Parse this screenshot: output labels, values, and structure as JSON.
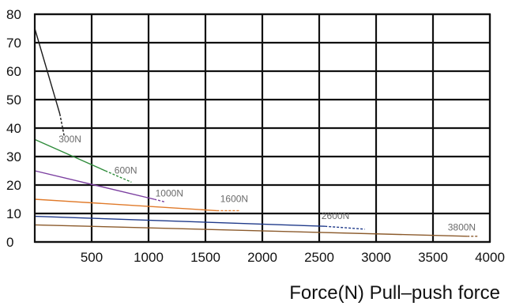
{
  "chart_data": {
    "type": "line",
    "title": "",
    "xlabel": "Force(N) Pull–push force",
    "ylabel": "",
    "xlim": [
      0,
      4000
    ],
    "ylim": [
      0,
      80
    ],
    "xticks": [
      500,
      1000,
      1500,
      2000,
      2500,
      3000,
      3500,
      4000
    ],
    "yticks": [
      0,
      10,
      20,
      30,
      40,
      50,
      60,
      70,
      80
    ],
    "grid": true,
    "legend": "none",
    "series": [
      {
        "name": "300N",
        "color": "#1a1a1a",
        "solid": [
          [
            0,
            75
          ],
          [
            220,
            45
          ]
        ],
        "dashed": [
          [
            220,
            45
          ],
          [
            260,
            37
          ]
        ],
        "label_at": [
          210,
          35
        ]
      },
      {
        "name": "600N",
        "color": "#2e8b3a",
        "solid": [
          [
            0,
            36
          ],
          [
            620,
            25
          ]
        ],
        "dashed": [
          [
            620,
            25
          ],
          [
            850,
            21
          ]
        ],
        "label_at": [
          700,
          24
        ]
      },
      {
        "name": "1000N",
        "color": "#7b3fa0",
        "solid": [
          [
            0,
            25
          ],
          [
            1050,
            15
          ]
        ],
        "dashed": [
          [
            1050,
            15
          ],
          [
            1150,
            14
          ]
        ],
        "label_at": [
          1060,
          16
        ]
      },
      {
        "name": "1600N",
        "color": "#e07a2a",
        "solid": [
          [
            0,
            15
          ],
          [
            1600,
            11
          ]
        ],
        "dashed": [
          [
            1600,
            11
          ],
          [
            1800,
            11
          ]
        ],
        "label_at": [
          1630,
          14
        ]
      },
      {
        "name": "2600N",
        "color": "#1f3a8a",
        "solid": [
          [
            0,
            9
          ],
          [
            2550,
            5.5
          ]
        ],
        "dashed": [
          [
            2550,
            5.5
          ],
          [
            2900,
            4.5
          ]
        ],
        "label_at": [
          2520,
          8
        ]
      },
      {
        "name": "3800N",
        "color": "#8b5a2b",
        "solid": [
          [
            0,
            6
          ],
          [
            3800,
            2
          ]
        ],
        "dashed": [
          [
            3800,
            2
          ],
          [
            3900,
            2
          ]
        ],
        "label_at": [
          3630,
          4
        ]
      }
    ]
  }
}
